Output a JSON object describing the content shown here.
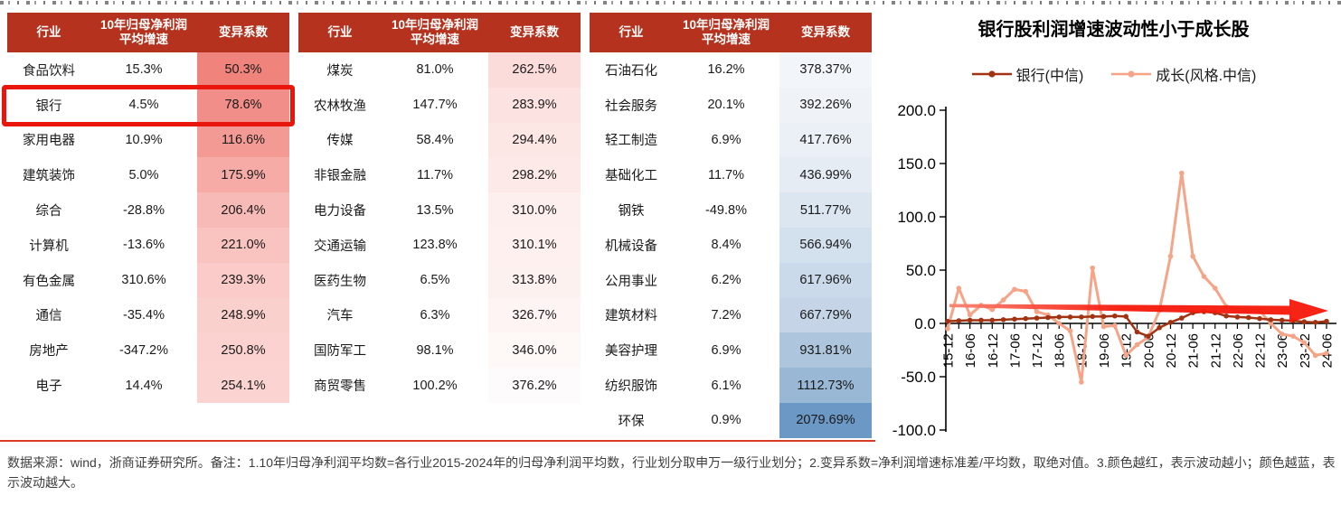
{
  "tables": [
    {
      "name": "industry-table-1",
      "headers": {
        "industry": "行业",
        "growth_line1": "10年归母净利润",
        "growth_line2": "平均增速",
        "cv": "变异系数"
      },
      "highlighted_row": "银行",
      "rows": [
        {
          "industry": "食品饮料",
          "growth": "15.3%",
          "cv": "50.3%",
          "cv_bg": "#F1837D"
        },
        {
          "industry": "银行",
          "growth": "4.5%",
          "cv": "78.6%",
          "cv_bg": "#F28E89"
        },
        {
          "industry": "家用电器",
          "growth": "10.9%",
          "cv": "116.6%",
          "cv_bg": "#F49A95"
        },
        {
          "industry": "建筑装饰",
          "growth": "5.0%",
          "cv": "175.9%",
          "cv_bg": "#F6ABA7"
        },
        {
          "industry": "综合",
          "growth": "-28.8%",
          "cv": "206.4%",
          "cv_bg": "#F8BAB6"
        },
        {
          "industry": "计算机",
          "growth": "-13.6%",
          "cv": "221.0%",
          "cv_bg": "#F9C3C0"
        },
        {
          "industry": "有色金属",
          "growth": "310.6%",
          "cv": "239.3%",
          "cv_bg": "#FACBC8"
        },
        {
          "industry": "通信",
          "growth": "-35.4%",
          "cv": "248.9%",
          "cv_bg": "#FAD0CD"
        },
        {
          "industry": "房地产",
          "growth": "-347.2%",
          "cv": "250.8%",
          "cv_bg": "#FBD2CF"
        },
        {
          "industry": "电子",
          "growth": "14.4%",
          "cv": "254.1%",
          "cv_bg": "#FBD4D1"
        }
      ]
    },
    {
      "name": "industry-table-2",
      "headers": {
        "industry": "行业",
        "growth_line1": "10年归母净利润",
        "growth_line2": "平均增速",
        "cv": "变异系数"
      },
      "rows": [
        {
          "industry": "煤炭",
          "growth": "81.0%",
          "cv": "262.5%",
          "cv_bg": "#FBDCDA"
        },
        {
          "industry": "农林牧渔",
          "growth": "147.7%",
          "cv": "283.9%",
          "cv_bg": "#FCE3E1"
        },
        {
          "industry": "传媒",
          "growth": "58.4%",
          "cv": "294.4%",
          "cv_bg": "#FCE7E5"
        },
        {
          "industry": "非银金融",
          "growth": "11.7%",
          "cv": "298.2%",
          "cv_bg": "#FDE9E7"
        },
        {
          "industry": "电力设备",
          "growth": "13.5%",
          "cv": "310.0%",
          "cv_bg": "#FDEFEE"
        },
        {
          "industry": "交通运输",
          "growth": "123.8%",
          "cv": "310.1%",
          "cv_bg": "#FDF0EF"
        },
        {
          "industry": "医药生物",
          "growth": "6.5%",
          "cv": "313.8%",
          "cv_bg": "#FDF1F0"
        },
        {
          "industry": "汽车",
          "growth": "6.3%",
          "cv": "326.7%",
          "cv_bg": "#FEF4F3"
        },
        {
          "industry": "国防军工",
          "growth": "98.1%",
          "cv": "346.0%",
          "cv_bg": "#FEF8F7"
        },
        {
          "industry": "商贸零售",
          "growth": "100.2%",
          "cv": "376.2%",
          "cv_bg": "#FDFBFB"
        }
      ]
    },
    {
      "name": "industry-table-3",
      "headers": {
        "industry": "行业",
        "growth_line1": "10年归母净利润",
        "growth_line2": "平均增速",
        "cv": "变异系数"
      },
      "rows": [
        {
          "industry": "石油石化",
          "growth": "16.2%",
          "cv": "378.37%",
          "cv_bg": "#F2F6FA"
        },
        {
          "industry": "社会服务",
          "growth": "20.1%",
          "cv": "392.26%",
          "cv_bg": "#EFF3F8"
        },
        {
          "industry": "轻工制造",
          "growth": "6.9%",
          "cv": "417.76%",
          "cv_bg": "#EAF0F6"
        },
        {
          "industry": "基础化工",
          "growth": "11.7%",
          "cv": "436.99%",
          "cv_bg": "#E5ECF4"
        },
        {
          "industry": "钢铁",
          "growth": "-49.8%",
          "cv": "511.77%",
          "cv_bg": "#DBE6F0"
        },
        {
          "industry": "机械设备",
          "growth": "8.4%",
          "cv": "566.94%",
          "cv_bg": "#D3E0ED"
        },
        {
          "industry": "公用事业",
          "growth": "6.2%",
          "cv": "617.96%",
          "cv_bg": "#CBDAEA"
        },
        {
          "industry": "建筑材料",
          "growth": "7.2%",
          "cv": "667.79%",
          "cv_bg": "#C5D5E7"
        },
        {
          "industry": "美容护理",
          "growth": "6.9%",
          "cv": "931.81%",
          "cv_bg": "#ADC6DD"
        },
        {
          "industry": "纺织服饰",
          "growth": "6.1%",
          "cv": "1112.73%",
          "cv_bg": "#99B8D5"
        },
        {
          "industry": "环保",
          "growth": "0.9%",
          "cv": "2079.69%",
          "cv_bg": "#6C98C6"
        }
      ]
    }
  ],
  "colors": {
    "table_header_bg": "#B5331E",
    "highlight_border": "#E9170B",
    "bottom_rule": "#D63B25",
    "arrow": "#F5190B"
  },
  "chart_data": {
    "type": "line",
    "title": "银行股利润增速波动性小于成长股",
    "x": [
      "15-12",
      "16-03",
      "16-06",
      "16-09",
      "16-12",
      "17-03",
      "17-06",
      "17-09",
      "17-12",
      "18-03",
      "18-06",
      "18-09",
      "18-12",
      "19-03",
      "19-06",
      "19-09",
      "19-12",
      "20-03",
      "20-06",
      "20-09",
      "20-12",
      "21-03",
      "21-06",
      "21-09",
      "21-12",
      "22-03",
      "22-06",
      "22-09",
      "22-12",
      "23-03",
      "23-06",
      "23-09",
      "23-12",
      "24-03",
      "24-06"
    ],
    "x_tick_labels": [
      "15-12",
      "16-06",
      "16-12",
      "17-06",
      "17-12",
      "18-06",
      "18-12",
      "19-06",
      "19-12",
      "20-06",
      "20-12",
      "21-06",
      "21-12",
      "22-06",
      "22-12",
      "23-06",
      "23-12",
      "24-06"
    ],
    "series": [
      {
        "name": "银行(中信)",
        "color": "#A23312",
        "values": [
          2,
          2.5,
          3,
          3,
          3,
          3.5,
          4,
          4.5,
          5,
          5.5,
          6,
          6,
          6,
          6.5,
          6.5,
          7,
          6.5,
          -8,
          -12,
          -4,
          1,
          5,
          10,
          11,
          10,
          7,
          6,
          5.5,
          4.5,
          3.5,
          3,
          2.5,
          1.5,
          1,
          2
        ]
      },
      {
        "name": "成长(风格.中信)",
        "color": "#F6A488",
        "values": [
          -5,
          33,
          8,
          17,
          13,
          22,
          32,
          30,
          11,
          8,
          0,
          -7,
          -55,
          52,
          -3,
          -2,
          -30,
          -20,
          -13,
          12,
          63,
          141,
          63,
          44,
          33,
          16,
          13,
          12,
          12,
          0,
          -10,
          -12,
          -18,
          -30,
          -28
        ]
      }
    ],
    "ylim": [
      -100,
      200
    ],
    "yticks": [
      200,
      150,
      100,
      50,
      0,
      -50,
      -100
    ],
    "grid": false,
    "legend_position": "top",
    "annotation": "thick red rightward arrow across chart at about y=18"
  },
  "footnote": "数据来源：wind，浙商证券研究所。备注：1.10年归母净利润平均数=各行业2015-2024年的归母净利润平均数，行业划分取申万一级行业划分；2.变异系数=净利润增速标准差/平均数，取绝对值。3.颜色越红，表示波动越小；颜色越蓝，表示波动越大。"
}
